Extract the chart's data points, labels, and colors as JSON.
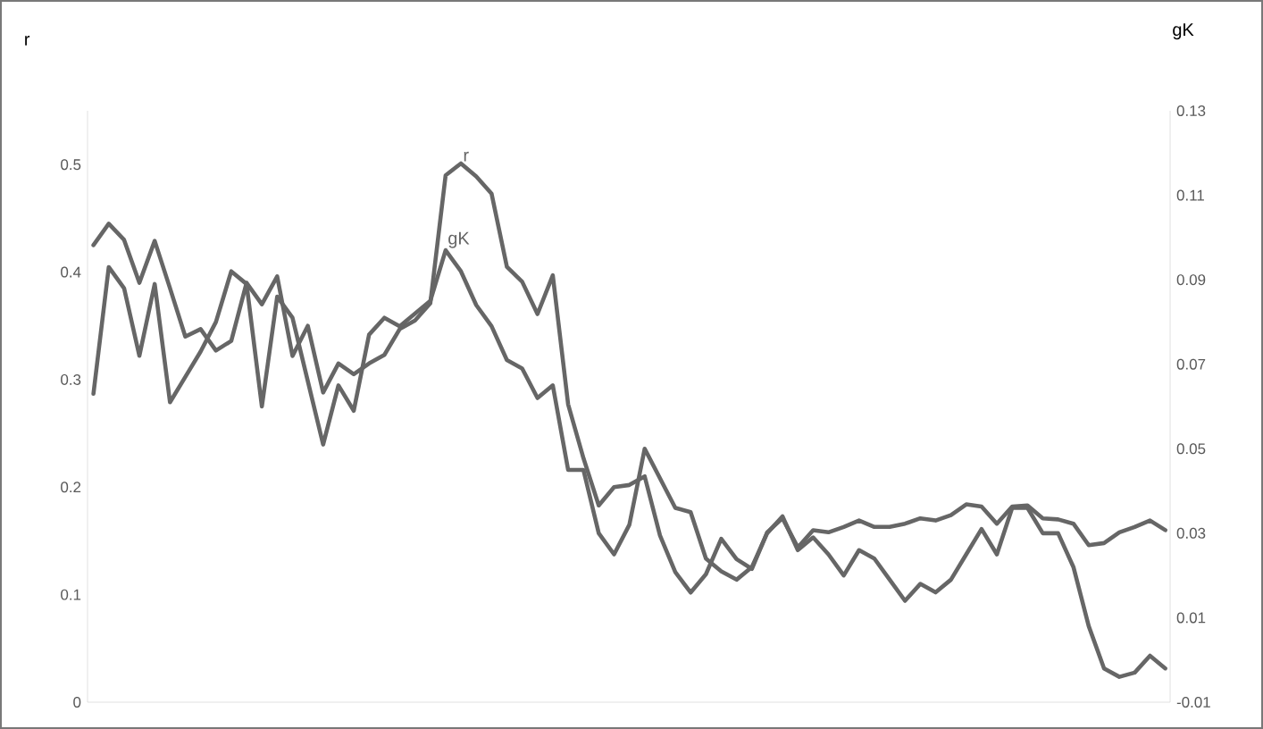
{
  "chart_data": {
    "type": "line",
    "ylabel": "r",
    "y2label": "gK",
    "categories": [
      null,
      null,
      null,
      null,
      null,
      null,
      null,
      null,
      null,
      null,
      null,
      null,
      null,
      null,
      null,
      null,
      null,
      null,
      null,
      null,
      null,
      null,
      null,
      null,
      null,
      null,
      null,
      null,
      null,
      null,
      null,
      null,
      null,
      null,
      null,
      null,
      null,
      null,
      null,
      null,
      null,
      null,
      null,
      null,
      null,
      null,
      null,
      null,
      null,
      null,
      null,
      null,
      null,
      null,
      null,
      null,
      null,
      null,
      null,
      null,
      null,
      null,
      null,
      null,
      null,
      null,
      null,
      null,
      null,
      null,
      null
    ],
    "series": [
      {
        "name": "r",
        "color": "#666666",
        "values": [
          0.425,
          0.445,
          0.43,
          0.39,
          0.429,
          0.385,
          0.34,
          0.347,
          0.327,
          0.336,
          0.39,
          0.37,
          0.396,
          0.322,
          0.35,
          0.288,
          0.315,
          0.305,
          0.315,
          0.323,
          0.347,
          0.355,
          0.371,
          0.49,
          0.501,
          0.489,
          0.473,
          0.405,
          0.391,
          0.361,
          0.397,
          0.277,
          0.227,
          0.183,
          0.2,
          0.202,
          0.21,
          0.155,
          0.121,
          0.102,
          0.119,
          0.152,
          0.133,
          0.124,
          0.158,
          0.171,
          0.144,
          0.16,
          0.158,
          0.163,
          0.169,
          0.163,
          0.163,
          0.166,
          0.171,
          0.169,
          0.174,
          0.184,
          0.182,
          0.166,
          0.182,
          0.183,
          0.171,
          0.17,
          0.166,
          0.146,
          0.148,
          0.158,
          0.163,
          0.169,
          0.16
        ]
      },
      {
        "name": "gK",
        "color": "#666666",
        "axis": "y2",
        "values": [
          0.063,
          0.093,
          0.088,
          0.072,
          0.089,
          0.061,
          0.067,
          0.073,
          0.08,
          0.092,
          0.089,
          0.06,
          0.086,
          0.081,
          0.066,
          0.051,
          0.065,
          0.059,
          0.077,
          0.081,
          0.079,
          0.082,
          0.085,
          0.097,
          0.092,
          0.084,
          0.079,
          0.071,
          0.069,
          0.062,
          0.065,
          0.045,
          0.045,
          0.03,
          0.025,
          0.032,
          0.05,
          0.043,
          0.036,
          0.035,
          0.024,
          0.021,
          0.019,
          0.022,
          0.03,
          0.034,
          0.026,
          0.029,
          0.025,
          0.02,
          0.026,
          0.024,
          0.019,
          0.014,
          0.018,
          0.016,
          0.019,
          0.025,
          0.031,
          0.025,
          0.036,
          0.036,
          0.03,
          0.03,
          0.022,
          0.008,
          -0.002,
          -0.004,
          -0.003,
          0.001,
          -0.002
        ]
      }
    ],
    "ylim": [
      0,
      0.55
    ],
    "yticks": [
      0,
      0.1,
      0.2,
      0.3,
      0.4,
      0.5
    ],
    "y2lim": [
      -0.01,
      0.13
    ],
    "y2ticks": [
      -0.01,
      0.01,
      0.03,
      0.05,
      0.07,
      0.09,
      0.11,
      0.13
    ],
    "grid": false,
    "legend": false,
    "marker": "none",
    "line_style": "solid"
  }
}
